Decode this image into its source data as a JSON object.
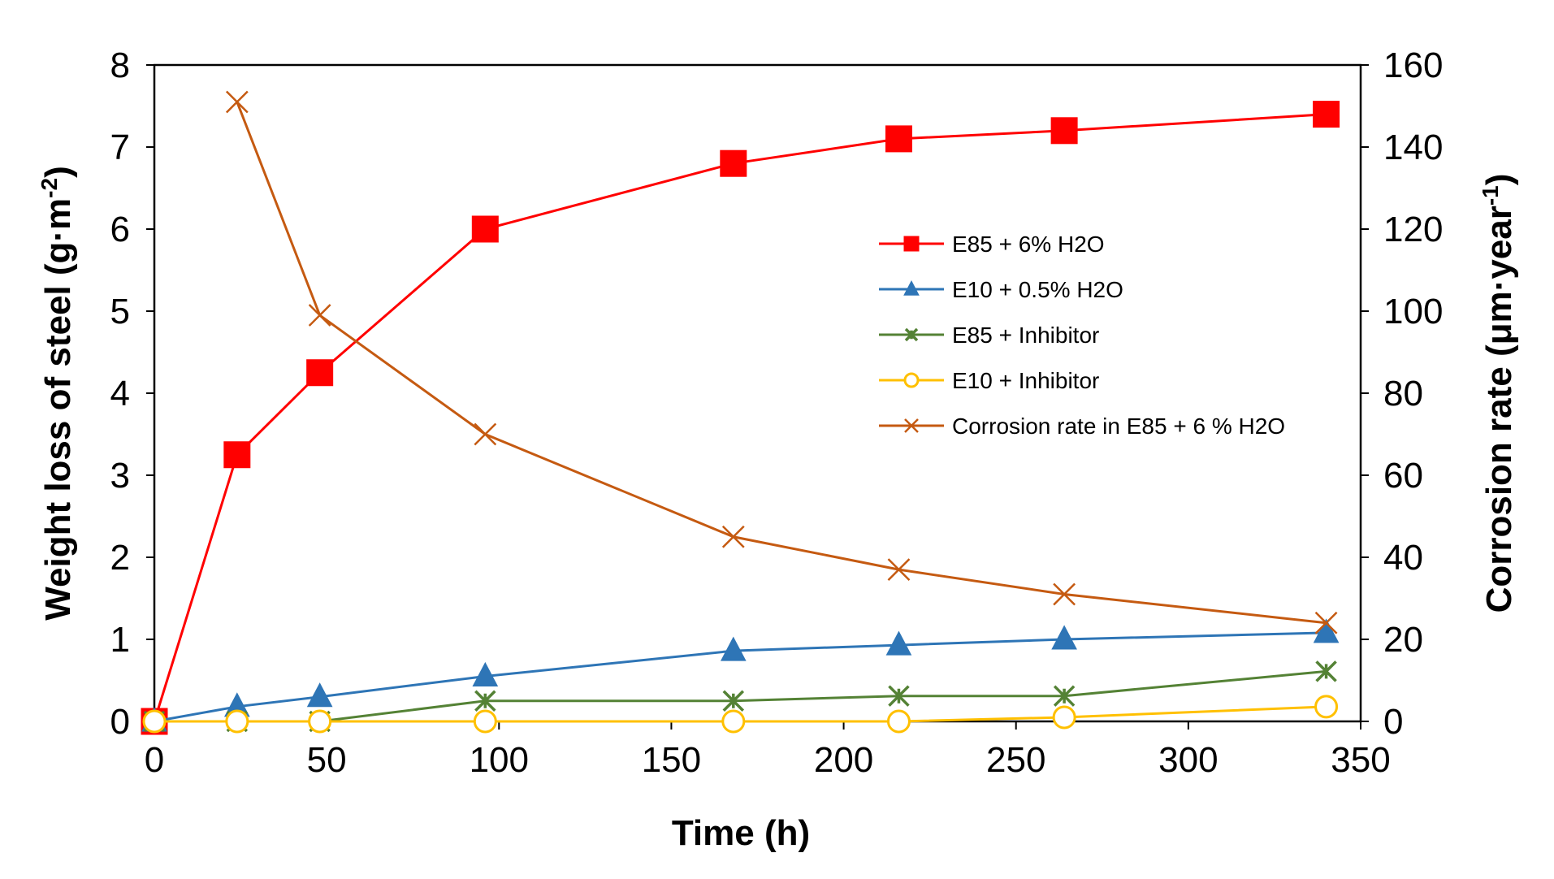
{
  "chart_data": {
    "type": "line",
    "title": "",
    "xlabel": "Time (h)",
    "ylabel_left": {
      "text": "Weight loss of steel (g·m",
      "sup": "-2",
      "end": ")"
    },
    "ylabel_right": {
      "text": "Corrosion rate (μm·year",
      "sup": "-1",
      "end": ")"
    },
    "xlim": [
      0,
      350
    ],
    "ylim_left": [
      0,
      8
    ],
    "ylim_right": [
      0,
      160
    ],
    "x_ticks": [
      0,
      50,
      100,
      150,
      200,
      250,
      300,
      350
    ],
    "y_ticks_left": [
      0,
      1,
      2,
      3,
      4,
      5,
      6,
      7,
      8
    ],
    "y_ticks_right": [
      0,
      20,
      40,
      60,
      80,
      100,
      120,
      140,
      160
    ],
    "grid": false,
    "legend_position": "center-right",
    "series": [
      {
        "name": "E85 + 6% H2O",
        "axis": "left",
        "color": "#ff0000",
        "marker": "square",
        "x": [
          0,
          24,
          48,
          96,
          168,
          216,
          264,
          340
        ],
        "y": [
          0,
          3.25,
          4.25,
          6.0,
          6.8,
          7.1,
          7.2,
          7.4
        ]
      },
      {
        "name": "E10 + 0.5% H2O",
        "axis": "left",
        "color": "#2e75b6",
        "marker": "triangle",
        "x": [
          0,
          24,
          48,
          96,
          168,
          216,
          264,
          340
        ],
        "y": [
          0,
          0.18,
          0.3,
          0.55,
          0.86,
          0.93,
          1.0,
          1.08
        ]
      },
      {
        "name": "E85 + Inhibitor",
        "axis": "left",
        "color": "#548235",
        "marker": "asterisk",
        "x": [
          0,
          24,
          48,
          96,
          168,
          216,
          264,
          340
        ],
        "y": [
          0,
          0,
          0,
          0.25,
          0.25,
          0.31,
          0.31,
          0.61
        ]
      },
      {
        "name": "E10 + Inhibitor",
        "axis": "left",
        "color": "#ffc000",
        "marker": "circle",
        "x": [
          0,
          24,
          48,
          96,
          168,
          216,
          264,
          340
        ],
        "y": [
          0,
          0,
          0,
          0,
          0,
          0,
          0.05,
          0.18
        ]
      },
      {
        "name": "Corrosion rate in E85 + 6 % H2O",
        "axis": "right",
        "color": "#c55a11",
        "marker": "x",
        "x": [
          24,
          48,
          96,
          168,
          216,
          264,
          340
        ],
        "y": [
          151,
          99,
          70,
          45,
          37,
          31,
          24
        ]
      }
    ]
  }
}
